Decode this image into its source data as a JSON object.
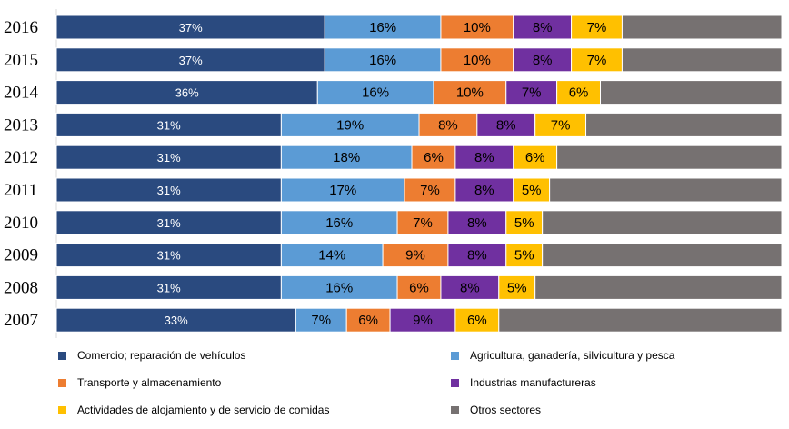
{
  "chart_data": {
    "type": "bar",
    "orientation": "horizontal",
    "stacked": true,
    "normalized": true,
    "categories": [
      "2016",
      "2015",
      "2014",
      "2013",
      "2012",
      "2011",
      "2010",
      "2009",
      "2008",
      "2007"
    ],
    "series": [
      {
        "name": "Comercio; reparación de vehículos",
        "color": "#2a4a7f",
        "values": [
          0.37,
          0.37,
          0.36,
          0.31,
          0.31,
          0.31,
          0.31,
          0.31,
          0.31,
          0.33
        ],
        "labels": [
          "37%",
          "37%",
          "36%",
          "31%",
          "31%",
          "31%",
          "31%",
          "31%",
          "31%",
          "33%"
        ]
      },
      {
        "name": "Agricultura, ganadería,  silvicultura  y pesca",
        "color": "#5b9bd5",
        "values": [
          0.16,
          0.16,
          0.16,
          0.19,
          0.18,
          0.17,
          0.16,
          0.14,
          0.16,
          0.07
        ],
        "labels": [
          "16%",
          "16%",
          "16%",
          "19%",
          "18%",
          "17%",
          "16%",
          "14%",
          "16%",
          "7%"
        ]
      },
      {
        "name": "Transporte y almacenamiento",
        "color": "#ed7d31",
        "values": [
          0.1,
          0.1,
          0.1,
          0.08,
          0.06,
          0.07,
          0.07,
          0.09,
          0.06,
          0.06
        ],
        "labels": [
          "10%",
          "10%",
          "10%",
          "8%",
          "6%",
          "7%",
          "7%",
          "9%",
          "6%",
          "6%"
        ]
      },
      {
        "name": "Industrias manufactureras",
        "color": "#7030a0",
        "values": [
          0.08,
          0.08,
          0.07,
          0.08,
          0.08,
          0.08,
          0.08,
          0.08,
          0.08,
          0.09
        ],
        "labels": [
          "8%",
          "8%",
          "7%",
          "8%",
          "8%",
          "8%",
          "8%",
          "8%",
          "8%",
          "9%"
        ]
      },
      {
        "name": "Actividades  de alojamiento  y de servicio de comidas",
        "color": "#ffc000",
        "values": [
          0.07,
          0.07,
          0.06,
          0.07,
          0.06,
          0.05,
          0.05,
          0.05,
          0.05,
          0.06
        ],
        "labels": [
          "7%",
          "7%",
          "6%",
          "7%",
          "6%",
          "5%",
          "5%",
          "5%",
          "5%",
          "6%"
        ]
      },
      {
        "name": "Otros sectores",
        "color": "#767171",
        "values": [
          0.22,
          0.22,
          0.25,
          0.27,
          0.31,
          0.32,
          0.33,
          0.33,
          0.34,
          0.39
        ],
        "labels": [
          "",
          "",
          "",
          "",
          "",
          "",
          "",
          "",
          "",
          ""
        ]
      }
    ],
    "xlim": [
      0,
      1
    ],
    "legend_position": "bottom",
    "grid": false
  }
}
